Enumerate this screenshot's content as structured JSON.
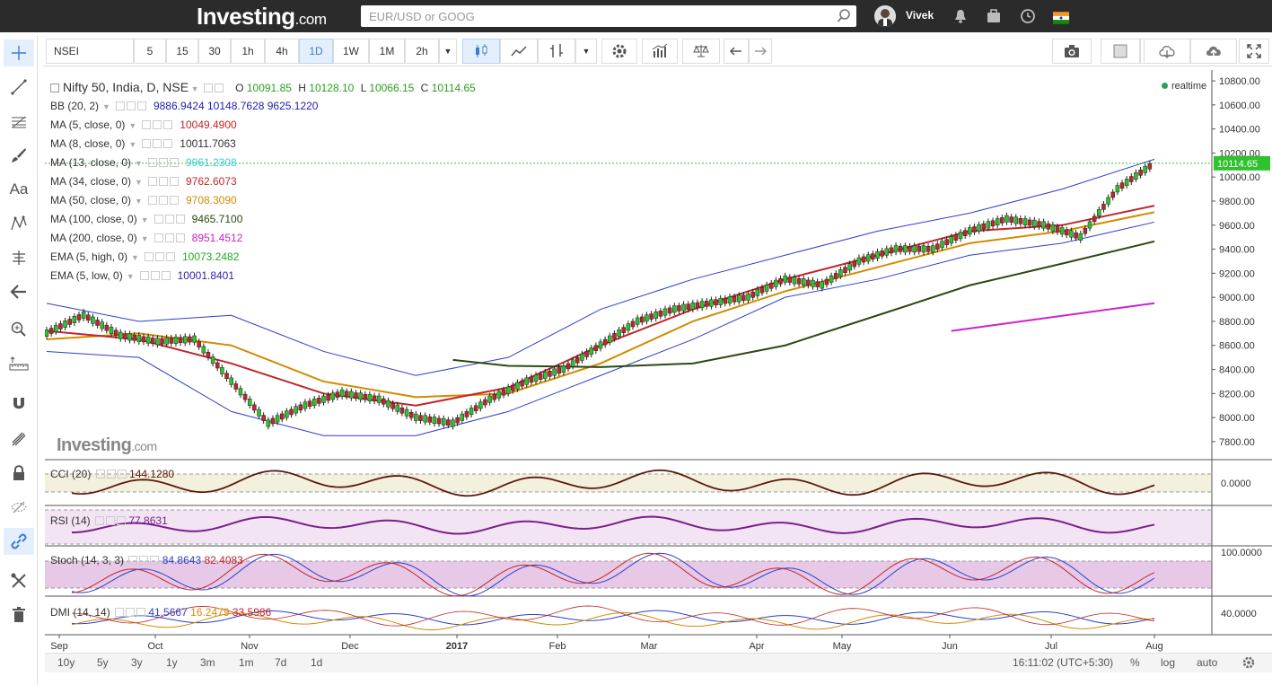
{
  "header": {
    "logo": "Investing",
    "logo_suffix": ".com",
    "search_placeholder": "EUR/USD or GOOG",
    "user_name": "Vivek"
  },
  "toolbar": {
    "symbol": "NSEI",
    "intervals": [
      "5",
      "15",
      "30",
      "1h",
      "4h",
      "1D",
      "1W",
      "1M",
      "2h"
    ],
    "active_interval": "1D"
  },
  "legend": {
    "title": "Nifty 50, India, D, NSE",
    "o_label": "O",
    "o": "10091.85",
    "h_label": "H",
    "h": "10128.10",
    "l_label": "L",
    "l": "10066.15",
    "c_label": "C",
    "c": "10114.65",
    "realtime": "realtime",
    "indicators": [
      {
        "name": "BB (20, 2)",
        "values": "9886.9424  10148.7628  9625.1220",
        "color": "#1f1fa8"
      },
      {
        "name": "MA (5, close, 0)",
        "values": "10049.4900",
        "color": "#c0262b"
      },
      {
        "name": "MA (8, close, 0)",
        "values": "10011.7063",
        "color": "#333333"
      },
      {
        "name": "MA (13, close, 0)",
        "values": "9961.2308",
        "color": "#33cccc"
      },
      {
        "name": "MA (34, close, 0)",
        "values": "9762.6073",
        "color": "#c0262b"
      },
      {
        "name": "MA (50, close, 0)",
        "values": "9708.3090",
        "color": "#d28b00"
      },
      {
        "name": "MA (100, close, 0)",
        "values": "9465.7100",
        "color": "#2b4a12"
      },
      {
        "name": "MA (200, close, 0)",
        "values": "8951.4512",
        "color": "#cc22cc"
      },
      {
        "name": "EMA (5, high, 0)",
        "values": "10073.2482",
        "color": "#22aa22"
      },
      {
        "name": "EMA (5, low, 0)",
        "values": "10001.8401",
        "color": "#3322aa"
      }
    ]
  },
  "panes": {
    "cci": {
      "name": "CCI (20)",
      "value": "144.1280",
      "axis": "0.0000"
    },
    "rsi": {
      "name": "RSI (14)",
      "value": "77.8631"
    },
    "stoch": {
      "name": "Stoch (14, 3, 3)",
      "v1": "84.8643",
      "v2": "82.4083",
      "axis": "100.0000"
    },
    "dmi": {
      "name": "DMI (14, 14)",
      "v1": "41.5667",
      "v2": "16.2479",
      "v3": "33.5986",
      "axis": "40.0000"
    }
  },
  "bottom": {
    "ranges": [
      "10y",
      "5y",
      "3y",
      "1y",
      "3m",
      "1m",
      "7d",
      "1d"
    ],
    "time": "16:11:02 (UTC+5:30)",
    "pct": "%",
    "log": "log",
    "auto": "auto"
  },
  "watermark": {
    "text": "Investing",
    "suffix": ".com"
  },
  "chart_data": {
    "type": "line",
    "title": "Nifty 50, India, D, NSE",
    "x_ticks": [
      "Sep",
      "Oct",
      "Nov",
      "Dec",
      "2017",
      "Feb",
      "Mar",
      "Apr",
      "May",
      "Jun",
      "Jul",
      "Aug"
    ],
    "y_ticks": [
      "7800.00",
      "8000.00",
      "8200.00",
      "8400.00",
      "8600.00",
      "8800.00",
      "9000.00",
      "9200.00",
      "9400.00",
      "9600.00",
      "9800.00",
      "10000.00",
      "10200.00",
      "10400.00",
      "10600.00",
      "10800.00"
    ],
    "ylim": [
      7650,
      10890
    ],
    "last_price": "10114.65",
    "series": [
      {
        "name": "Nifty 50",
        "color": "#2e7d32",
        "x": [
          0,
          8,
          16,
          24,
          32,
          40,
          48,
          56,
          64,
          72,
          80,
          88,
          96,
          104,
          112,
          120,
          128,
          136,
          144,
          152,
          160,
          168,
          176,
          184,
          192,
          200,
          208,
          216,
          224,
          232,
          240
        ],
        "values": [
          8700,
          8850,
          8680,
          8630,
          8650,
          8300,
          7950,
          8100,
          8200,
          8150,
          8000,
          7950,
          8150,
          8300,
          8400,
          8600,
          8800,
          8900,
          8950,
          9000,
          9150,
          9100,
          9300,
          9400,
          9400,
          9550,
          9650,
          9600,
          9500,
          9900,
          10114
        ]
      },
      {
        "name": "MA (50, close, 0)",
        "color": "#d28b00",
        "x": [
          0,
          20,
          40,
          60,
          80,
          100,
          120,
          140,
          160,
          180,
          200,
          220,
          240
        ],
        "values": [
          8650,
          8700,
          8600,
          8300,
          8170,
          8200,
          8450,
          8800,
          9050,
          9250,
          9450,
          9550,
          9708
        ]
      },
      {
        "name": "MA (34, close, 0)",
        "color": "#c0262b",
        "x": [
          0,
          20,
          40,
          60,
          80,
          100,
          120,
          140,
          160,
          180,
          200,
          220,
          240
        ],
        "values": [
          8720,
          8650,
          8450,
          8200,
          8100,
          8250,
          8600,
          8900,
          9150,
          9350,
          9550,
          9600,
          9762
        ]
      },
      {
        "name": "MA (100, close, 0)",
        "color": "#2b4a12",
        "x": [
          88,
          100,
          120,
          140,
          160,
          180,
          200,
          220,
          240
        ],
        "values": [
          8480,
          8430,
          8420,
          8450,
          8600,
          8850,
          9100,
          9280,
          9465
        ]
      },
      {
        "name": "MA (200, close, 0)",
        "color": "#cc22cc",
        "x": [
          196,
          240
        ],
        "values": [
          8720,
          8951
        ]
      }
    ],
    "bb_upper": {
      "x": [
        0,
        20,
        40,
        60,
        80,
        100,
        120,
        140,
        160,
        180,
        200,
        220,
        240
      ],
      "values": [
        8950,
        8800,
        8850,
        8550,
        8350,
        8500,
        8900,
        9150,
        9350,
        9550,
        9700,
        9900,
        10148
      ]
    },
    "bb_lower": {
      "x": [
        0,
        20,
        40,
        60,
        80,
        100,
        120,
        140,
        160,
        180,
        200,
        220,
        240
      ],
      "values": [
        8550,
        8500,
        8050,
        7850,
        7850,
        8050,
        8350,
        8650,
        9000,
        9150,
        9350,
        9450,
        9625
      ]
    }
  }
}
